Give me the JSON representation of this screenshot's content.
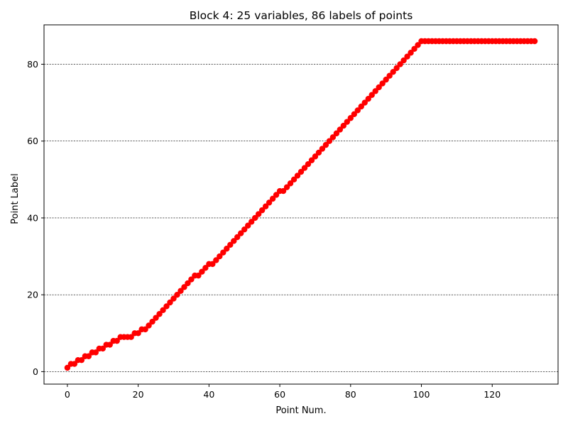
{
  "chart_data": {
    "type": "scatter",
    "title": "Block 4: 25 variables, 86 labels of points",
    "xlabel": "Point Num.",
    "ylabel": "Point Label",
    "xlim": [
      -6.6,
      138.6
    ],
    "ylim": [
      -3.25,
      90.25
    ],
    "xticks": [
      0,
      20,
      40,
      60,
      80,
      100,
      120
    ],
    "yticks": [
      0,
      20,
      40,
      60,
      80
    ],
    "grid": {
      "axis": "y",
      "style": "dashed",
      "color": "#000000"
    },
    "marker_color": "#ff0000",
    "line_color": "#ff0000",
    "series": [
      {
        "x": [
          0,
          1,
          2,
          3,
          4,
          5,
          6,
          7,
          8,
          9,
          10,
          11,
          12,
          13,
          14,
          15,
          16,
          17,
          18,
          19,
          20,
          21,
          22,
          23,
          24,
          25,
          26,
          27,
          28,
          29,
          30,
          31,
          32,
          33,
          34,
          35,
          36,
          37,
          38,
          39,
          40,
          41,
          42,
          43,
          44,
          45,
          46,
          47,
          48,
          49,
          50,
          51,
          52,
          53,
          54,
          55,
          56,
          57,
          58,
          59,
          60,
          61,
          62,
          63,
          64,
          65,
          66,
          67,
          68,
          69,
          70,
          71,
          72,
          73,
          74,
          75,
          76,
          77,
          78,
          79,
          80,
          81,
          82,
          83,
          84,
          85,
          86,
          87,
          88,
          89,
          90,
          91,
          92,
          93,
          94,
          95,
          96,
          97,
          98,
          99,
          100,
          101,
          102,
          103,
          104,
          105,
          106,
          107,
          108,
          109,
          110,
          111,
          112,
          113,
          114,
          115,
          116,
          117,
          118,
          119,
          120,
          121,
          122,
          123,
          124,
          125,
          126,
          127,
          128,
          129,
          130,
          131,
          132
        ],
        "y": [
          1,
          2,
          2,
          3,
          3,
          4,
          4,
          5,
          5,
          6,
          6,
          7,
          7,
          8,
          8,
          9,
          9,
          9,
          9,
          10,
          10,
          11,
          11,
          12,
          13,
          14,
          15,
          16,
          17,
          18,
          19,
          20,
          21,
          22,
          23,
          24,
          25,
          25,
          26,
          27,
          28,
          28,
          29,
          30,
          31,
          32,
          33,
          34,
          35,
          36,
          37,
          38,
          39,
          40,
          41,
          42,
          43,
          44,
          45,
          46,
          47,
          47,
          48,
          49,
          50,
          51,
          52,
          53,
          54,
          55,
          56,
          57,
          58,
          59,
          60,
          61,
          62,
          63,
          64,
          65,
          66,
          67,
          68,
          69,
          70,
          71,
          72,
          73,
          74,
          75,
          76,
          77,
          78,
          79,
          80,
          81,
          82,
          83,
          84,
          85,
          86,
          86,
          86,
          86,
          86,
          86,
          86,
          86,
          86,
          86,
          86,
          86,
          86,
          86,
          86,
          86,
          86,
          86,
          86,
          86,
          86,
          86,
          86,
          86,
          86,
          86,
          86,
          86,
          86,
          86,
          86,
          86,
          86
        ]
      }
    ]
  }
}
